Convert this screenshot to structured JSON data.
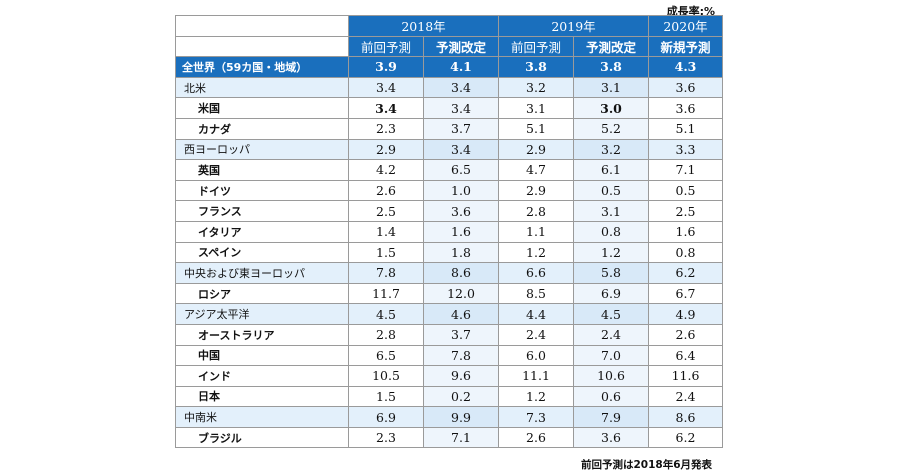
{
  "unit_label": "成長率:%",
  "headers": {
    "years": [
      "2018年",
      "2019年",
      "2020年"
    ],
    "subs": [
      "前回予測",
      "予測改定",
      "前回予測",
      "予測改定",
      "新規予測"
    ]
  },
  "rows": [
    {
      "name": "全世界（59カ国・地域）",
      "values": [
        "3.9",
        "4.1",
        "3.8",
        "3.8",
        "4.3"
      ]
    },
    {
      "name": "北米",
      "values": [
        "3.4",
        "3.4",
        "3.2",
        "3.1",
        "3.6"
      ]
    },
    {
      "name": "米国",
      "values": [
        "3.4",
        "3.4",
        "3.1",
        "3.0",
        "3.6"
      ]
    },
    {
      "name": "カナダ",
      "values": [
        "2.3",
        "3.7",
        "5.1",
        "5.2",
        "5.1"
      ]
    },
    {
      "name": "西ヨーロッパ",
      "values": [
        "2.9",
        "3.4",
        "2.9",
        "3.2",
        "3.3"
      ]
    },
    {
      "name": "英国",
      "values": [
        "4.2",
        "6.5",
        "4.7",
        "6.1",
        "7.1"
      ]
    },
    {
      "name": "ドイツ",
      "values": [
        "2.6",
        "1.0",
        "2.9",
        "0.5",
        "0.5"
      ]
    },
    {
      "name": "フランス",
      "values": [
        "2.5",
        "3.6",
        "2.8",
        "3.1",
        "2.5"
      ]
    },
    {
      "name": "イタリア",
      "values": [
        "1.4",
        "1.6",
        "1.1",
        "0.8",
        "1.6"
      ]
    },
    {
      "name": "スペイン",
      "values": [
        "1.5",
        "1.8",
        "1.2",
        "1.2",
        "0.8"
      ]
    },
    {
      "name": "中央および東ヨーロッパ",
      "values": [
        "7.8",
        "8.6",
        "6.6",
        "5.8",
        "6.2"
      ]
    },
    {
      "name": "ロシア",
      "values": [
        "11.7",
        "12.0",
        "8.5",
        "6.9",
        "6.7"
      ]
    },
    {
      "name": "アジア太平洋",
      "values": [
        "4.5",
        "4.6",
        "4.4",
        "4.5",
        "4.9"
      ]
    },
    {
      "name": "オーストラリア",
      "values": [
        "2.8",
        "3.7",
        "2.4",
        "2.4",
        "2.6"
      ]
    },
    {
      "name": "中国",
      "values": [
        "6.5",
        "7.8",
        "6.0",
        "7.0",
        "6.4"
      ]
    },
    {
      "name": "インド",
      "values": [
        "10.5",
        "9.6",
        "11.1",
        "10.6",
        "11.6"
      ]
    },
    {
      "name": "日本",
      "values": [
        "1.5",
        "0.2",
        "1.2",
        "0.6",
        "2.4"
      ]
    },
    {
      "name": "中南米",
      "values": [
        "6.9",
        "9.9",
        "7.3",
        "7.9",
        "8.6"
      ]
    },
    {
      "name": "ブラジル",
      "values": [
        "2.3",
        "7.1",
        "2.6",
        "3.6",
        "6.2"
      ]
    }
  ],
  "footnote": "前回予測は2018年6月発表"
}
